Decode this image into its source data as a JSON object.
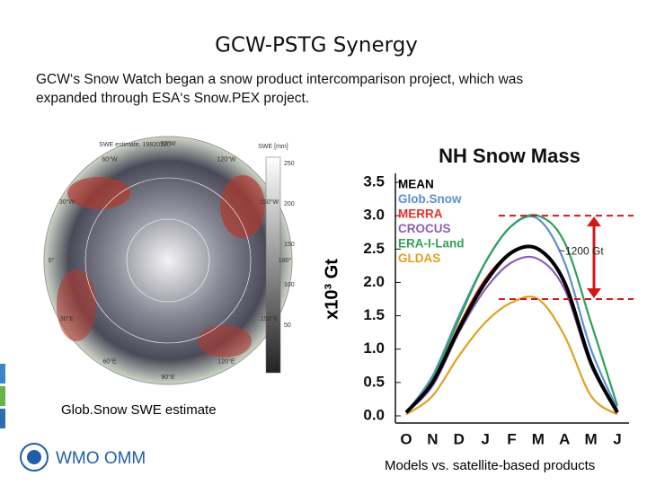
{
  "slide": {
    "title": "GCW-PSTG Synergy",
    "body_lines": [
      "GCW‘s Snow Watch began a snow product intercomparison project, which was",
      "expanded through ESA‘s Snow.PEX project."
    ],
    "map_caption": "Glob.Snow SWE estimate",
    "chart_caption": "Models vs. satellite-based products",
    "logo": "WMO OMM",
    "map": {
      "title": "SWE estimate, 19820120",
      "colorbar_title": "SWE [mm]",
      "colorbar_labels": [
        "250",
        "200",
        "150",
        "100",
        "50"
      ],
      "lon_labels": [
        "90°W",
        "120°W",
        "150°W",
        "180°",
        "150°E",
        "120°E",
        "90°E",
        "60°E",
        "30°E",
        "0°",
        "30°W",
        "60°W"
      ]
    }
  },
  "chart_data": {
    "type": "line",
    "title": "NH Snow Mass",
    "ylabel": "x10³ Gt",
    "annotation": "~1200 Gt",
    "categories": [
      "O",
      "N",
      "D",
      "J",
      "F",
      "M",
      "A",
      "M",
      "J"
    ],
    "ylim": [
      0,
      3.5
    ],
    "yticks": [
      {
        "value": 0,
        "label": "0.0"
      },
      0.5,
      {
        "value": 1,
        "label": "1.0"
      },
      1.5,
      {
        "value": 2,
        "label": "2.0"
      },
      2.5,
      {
        "value": 3,
        "label": "3.0"
      },
      3.5
    ],
    "series": [
      {
        "name": "MEAN",
        "color": "#000000",
        "values": [
          0.05,
          0.5,
          1.3,
          2.0,
          2.45,
          2.5,
          2.0,
          0.8,
          0.05
        ]
      },
      {
        "name": "Glob.Snow",
        "color": "#5a8fd0",
        "values": [
          0.05,
          0.6,
          1.5,
          2.3,
          2.85,
          2.95,
          2.3,
          1.0,
          0.1
        ]
      },
      {
        "name": "MERRA",
        "color": "#e0302a",
        "values": [
          0.05,
          0.5,
          1.35,
          2.05,
          2.45,
          2.5,
          2.0,
          0.8,
          0.05
        ]
      },
      {
        "name": "CROCUS",
        "color": "#8a5fb8",
        "values": [
          0.05,
          0.45,
          1.25,
          1.9,
          2.3,
          2.35,
          1.9,
          0.75,
          0.05
        ]
      },
      {
        "name": "ERA-I-Land",
        "color": "#2fa05a",
        "values": [
          0.05,
          0.55,
          1.45,
          2.3,
          2.85,
          3.0,
          2.6,
          1.4,
          0.15
        ]
      },
      {
        "name": "GLDAS",
        "color": "#e0a020",
        "values": [
          0.02,
          0.3,
          0.9,
          1.4,
          1.7,
          1.75,
          1.2,
          0.3,
          0.02
        ]
      }
    ]
  }
}
